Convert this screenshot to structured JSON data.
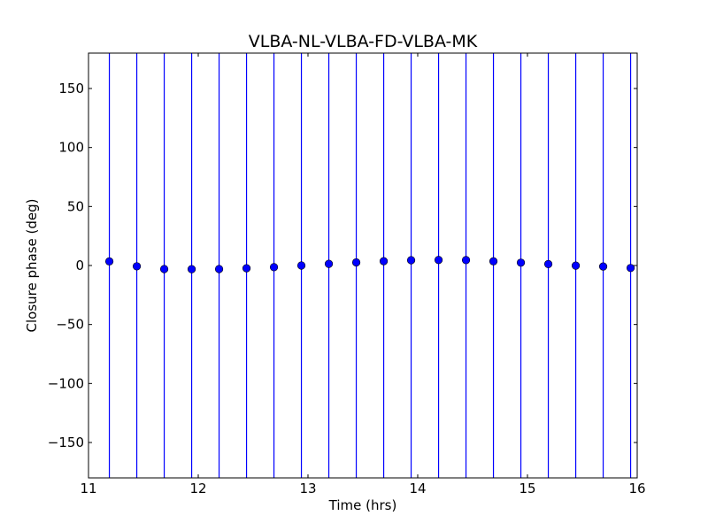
{
  "chart_data": {
    "type": "scatter",
    "title": "VLBA-NL-VLBA-FD-VLBA-MK",
    "xlabel": "Time (hrs)",
    "ylabel": "Closure phase (deg)",
    "xlim": [
      11,
      16
    ],
    "ylim": [
      -180,
      180
    ],
    "xticks": [
      11,
      12,
      13,
      14,
      15,
      16
    ],
    "xtick_labels": [
      "11",
      "12",
      "13",
      "14",
      "15",
      "16"
    ],
    "yticks": [
      -150,
      -100,
      -50,
      0,
      50,
      100,
      150
    ],
    "ytick_labels": [
      "−150",
      "−100",
      "−50",
      "0",
      "50",
      "100",
      "150"
    ],
    "grid": false,
    "marker_color": "#0000ff",
    "errorbar_color": "#0000ff",
    "series": [
      {
        "x": [
          11.19,
          11.44,
          11.69,
          11.94,
          12.19,
          12.44,
          12.69,
          12.94,
          13.19,
          13.44,
          13.69,
          13.94,
          14.19,
          14.44,
          14.69,
          14.94,
          15.19,
          15.44,
          15.69,
          15.94
        ],
        "y": [
          3.5,
          -0.7,
          -3.0,
          -3.1,
          -3.0,
          -2.3,
          -1.4,
          0.0,
          1.4,
          2.6,
          3.7,
          4.5,
          4.7,
          4.6,
          3.6,
          2.4,
          1.2,
          -0.1,
          -0.8,
          -2.1
        ],
        "yerr": [
          360,
          360,
          360,
          360,
          360,
          360,
          360,
          360,
          360,
          360,
          360,
          360,
          360,
          360,
          360,
          360,
          360,
          360,
          360,
          360
        ]
      }
    ]
  }
}
